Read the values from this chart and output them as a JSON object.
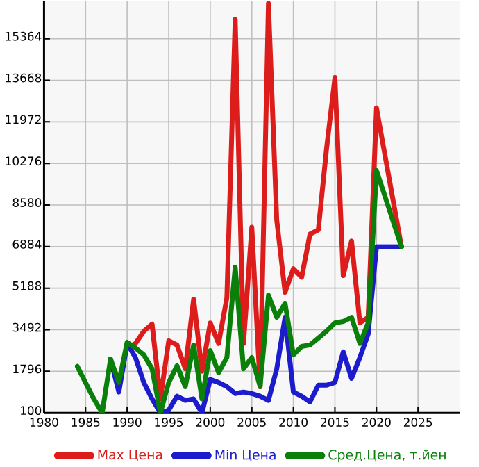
{
  "chart_data": {
    "type": "line",
    "x": [
      1984,
      1985,
      1986,
      1987,
      1988,
      1989,
      1990,
      1991,
      1992,
      1993,
      1994,
      1995,
      1996,
      1997,
      1998,
      1999,
      2000,
      2001,
      2002,
      2003,
      2004,
      2005,
      2006,
      2007,
      2008,
      2009,
      2010,
      2011,
      2012,
      2013,
      2014,
      2015,
      2016,
      2017,
      2018,
      2019,
      2020,
      2023
    ],
    "series": [
      {
        "name": "Max Цена",
        "color": "#dd1c1c",
        "values": [
          null,
          null,
          null,
          null,
          null,
          null,
          2750,
          2930,
          3430,
          3720,
          670,
          3040,
          2870,
          1900,
          4740,
          1800,
          3770,
          2930,
          4800,
          16150,
          2930,
          7670,
          1170,
          16800,
          7960,
          5020,
          5980,
          5640,
          7390,
          7560,
          10900,
          13780,
          5700,
          7110,
          3770,
          4000,
          12540,
          6880
        ]
      },
      {
        "name": "Min Цена",
        "color": "#1c1ccc",
        "values": [
          null,
          null,
          null,
          null,
          2300,
          950,
          2930,
          2360,
          1340,
          670,
          100,
          210,
          780,
          610,
          670,
          100,
          1460,
          1340,
          1170,
          890,
          950,
          890,
          780,
          610,
          1900,
          4000,
          950,
          780,
          550,
          1230,
          1230,
          1340,
          2590,
          1510,
          2360,
          3320,
          6880,
          6880
        ]
      },
      {
        "name": "Сред.Цена, т.йен",
        "color": "#0a7f0a",
        "values": [
          2000,
          1330,
          670,
          100,
          2300,
          1340,
          2980,
          2750,
          2470,
          1900,
          100,
          1340,
          2020,
          1170,
          2870,
          670,
          2640,
          1740,
          2360,
          6040,
          1900,
          2360,
          1170,
          4900,
          4000,
          4570,
          2470,
          2810,
          2870,
          3150,
          3440,
          3770,
          3830,
          4000,
          2930,
          3770,
          9990,
          6880
        ]
      }
    ],
    "xlim": [
      1980,
      2030
    ],
    "ylim": [
      100,
      16900
    ],
    "xticks": [
      1980,
      1985,
      1990,
      1995,
      2000,
      2005,
      2010,
      2015,
      2020,
      2025
    ],
    "yticks": [
      100,
      1796,
      3492,
      5188,
      6884,
      8580,
      10276,
      11972,
      13668,
      15364
    ],
    "grid": true,
    "legend": "bottom",
    "marker": "none",
    "line_style": "solid"
  }
}
